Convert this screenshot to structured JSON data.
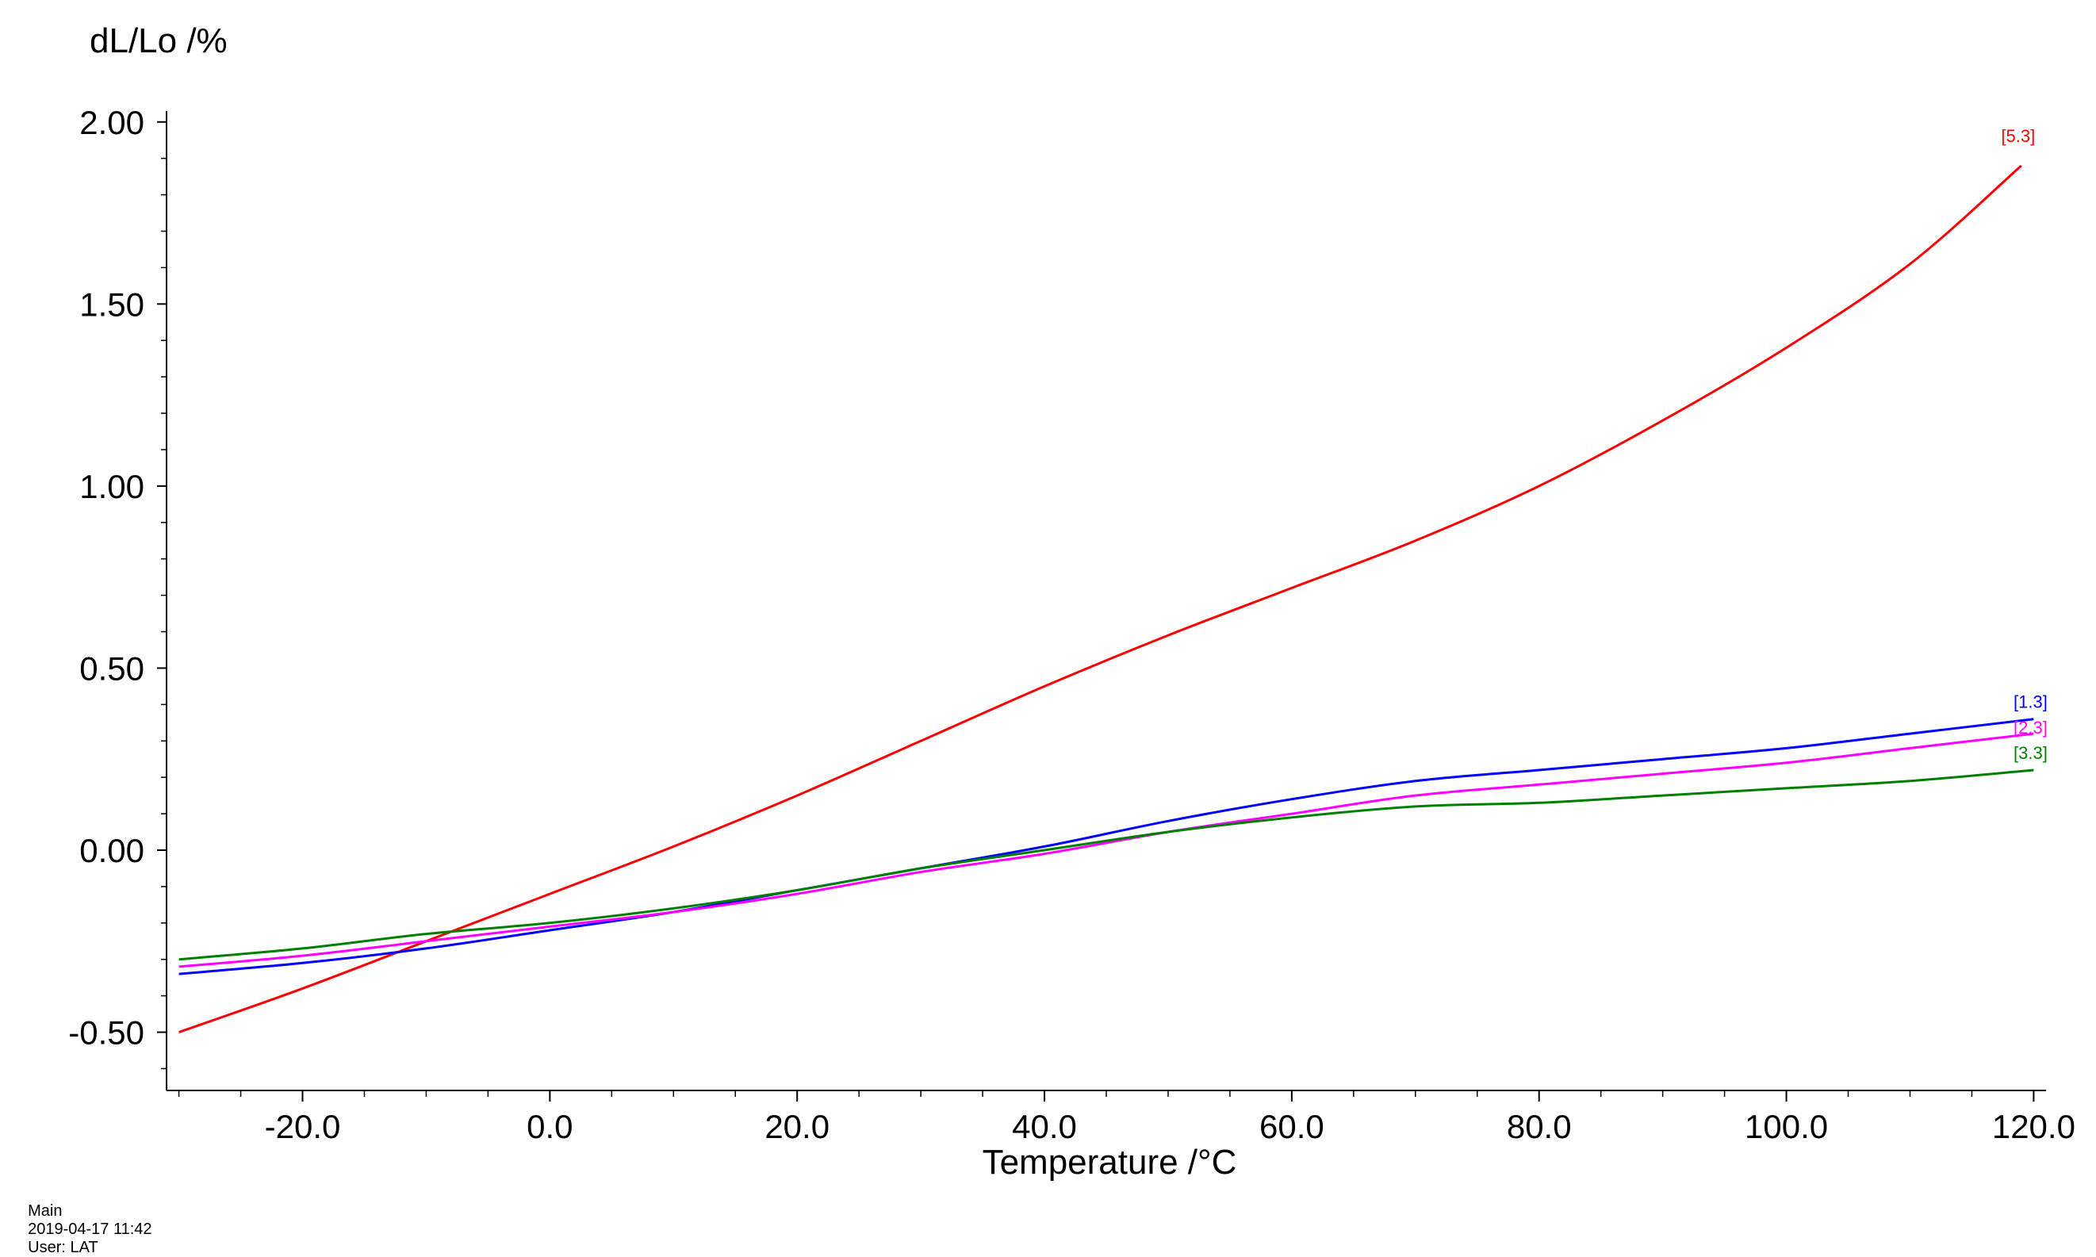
{
  "chart_data": {
    "type": "line",
    "title": "",
    "xlabel": "Temperature /°C",
    "ylabel": "dL/Lo /%",
    "xlim": [
      -31,
      121
    ],
    "ylim": [
      -0.66,
      2.03
    ],
    "x_ticks": [
      -20,
      0,
      20,
      40,
      60,
      80,
      100,
      120
    ],
    "x_tick_labels": [
      "-20.0",
      "0.0",
      "20.0",
      "40.0",
      "60.0",
      "80.0",
      "100.0",
      "120.0"
    ],
    "y_ticks": [
      -0.5,
      0,
      0.5,
      1,
      1.5,
      2
    ],
    "y_tick_labels": [
      "-0.50",
      "0.00",
      "0.50",
      "1.00",
      "1.50",
      "2.00"
    ],
    "grid": false,
    "legend": "none",
    "series": [
      {
        "name": "[5.3]",
        "color": "#ff0000",
        "x": [
          -30,
          -20,
          -10,
          0,
          10,
          20,
          30,
          40,
          50,
          60,
          70,
          80,
          90,
          100,
          110,
          119
        ],
        "y": [
          -0.5,
          -0.38,
          -0.25,
          -0.12,
          0.01,
          0.15,
          0.3,
          0.45,
          0.59,
          0.72,
          0.85,
          1.0,
          1.18,
          1.38,
          1.61,
          1.88
        ]
      },
      {
        "name": "[1.3]",
        "color": "#0000ff",
        "x": [
          -30,
          -20,
          -10,
          0,
          10,
          20,
          30,
          40,
          50,
          60,
          70,
          80,
          90,
          100,
          110,
          120
        ],
        "y": [
          -0.34,
          -0.31,
          -0.27,
          -0.22,
          -0.17,
          -0.11,
          -0.05,
          0.01,
          0.08,
          0.14,
          0.19,
          0.22,
          0.25,
          0.28,
          0.32,
          0.36
        ]
      },
      {
        "name": "[2.3]",
        "color": "#ff00ff",
        "x": [
          -30,
          -20,
          -10,
          0,
          10,
          20,
          30,
          40,
          50,
          60,
          70,
          80,
          90,
          100,
          110,
          120
        ],
        "y": [
          -0.32,
          -0.29,
          -0.25,
          -0.21,
          -0.17,
          -0.12,
          -0.06,
          -0.01,
          0.05,
          0.1,
          0.15,
          0.18,
          0.21,
          0.24,
          0.28,
          0.32
        ]
      },
      {
        "name": "[3.3]",
        "color": "#008000",
        "x": [
          -30,
          -20,
          -10,
          0,
          10,
          20,
          30,
          40,
          50,
          60,
          70,
          80,
          90,
          100,
          110,
          120
        ],
        "y": [
          -0.3,
          -0.27,
          -0.23,
          -0.2,
          -0.16,
          -0.11,
          -0.05,
          0.0,
          0.05,
          0.09,
          0.12,
          0.13,
          0.15,
          0.17,
          0.19,
          0.22
        ]
      }
    ]
  },
  "footer": {
    "workspace": "Main",
    "timestamp": "2019-04-17 11:42",
    "user": "User: LAT"
  }
}
